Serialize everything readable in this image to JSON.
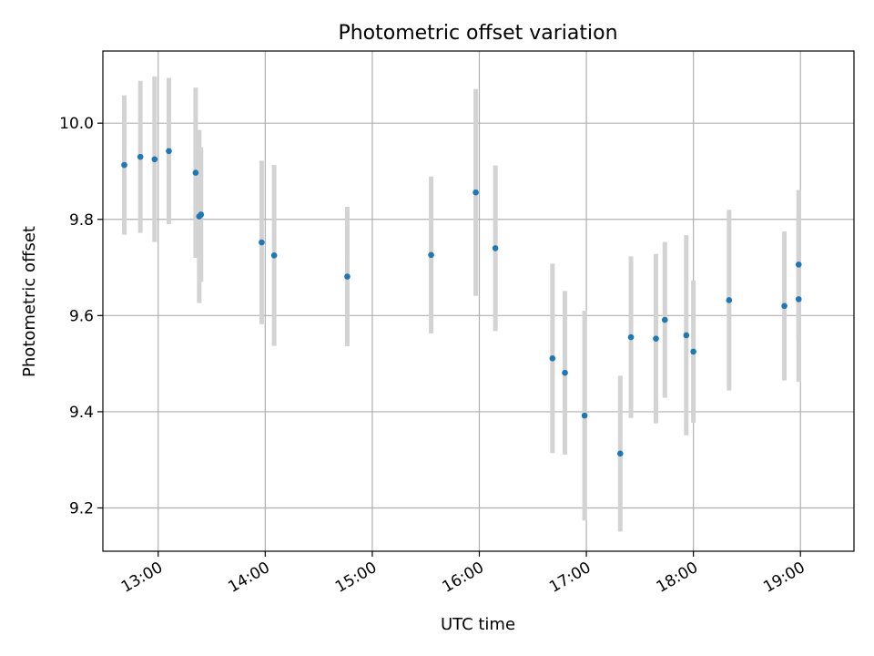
{
  "chart_data": {
    "type": "scatter",
    "title": "Photometric offset variation",
    "xlabel": "UTC time",
    "ylabel": "Photometric offset",
    "x_ticks": [
      "13:00",
      "14:00",
      "15:00",
      "16:00",
      "17:00",
      "18:00",
      "19:00"
    ],
    "y_ticks": [
      "9.2",
      "9.4",
      "9.6",
      "9.8",
      "10.0"
    ],
    "xlim": [
      "12:29",
      "19:30"
    ],
    "ylim": [
      9.11,
      10.15
    ],
    "grid": true,
    "marker_color": "#1f77b4",
    "errorbar_color": "#d3d3d3",
    "points": [
      {
        "t": "12:41",
        "y": 9.913,
        "err": 0.145
      },
      {
        "t": "12:50",
        "y": 9.93,
        "err": 0.158
      },
      {
        "t": "12:58",
        "y": 9.925,
        "err": 0.172
      },
      {
        "t": "13:06",
        "y": 9.942,
        "err": 0.152
      },
      {
        "t": "13:21",
        "y": 9.897,
        "err": 0.177
      },
      {
        "t": "13:23",
        "y": 9.806,
        "err": 0.18
      },
      {
        "t": "13:24",
        "y": 9.81,
        "err": 0.14
      },
      {
        "t": "13:58",
        "y": 9.752,
        "err": 0.17
      },
      {
        "t": "14:05",
        "y": 9.725,
        "err": 0.188
      },
      {
        "t": "14:46",
        "y": 9.681,
        "err": 0.145
      },
      {
        "t": "15:33",
        "y": 9.726,
        "err": 0.163
      },
      {
        "t": "15:58",
        "y": 9.856,
        "err": 0.215
      },
      {
        "t": "16:09",
        "y": 9.74,
        "err": 0.172
      },
      {
        "t": "16:41",
        "y": 9.511,
        "err": 0.197
      },
      {
        "t": "16:48",
        "y": 9.481,
        "err": 0.17
      },
      {
        "t": "16:59",
        "y": 9.392,
        "err": 0.218
      },
      {
        "t": "17:19",
        "y": 9.313,
        "err": 0.162
      },
      {
        "t": "17:25",
        "y": 9.555,
        "err": 0.168
      },
      {
        "t": "17:39",
        "y": 9.552,
        "err": 0.176
      },
      {
        "t": "17:44",
        "y": 9.591,
        "err": 0.162
      },
      {
        "t": "17:56",
        "y": 9.559,
        "err": 0.208
      },
      {
        "t": "18:00",
        "y": 9.525,
        "err": 0.148
      },
      {
        "t": "18:20",
        "y": 9.632,
        "err": 0.188
      },
      {
        "t": "18:51",
        "y": 9.62,
        "err": 0.155
      },
      {
        "t": "18:59",
        "y": 9.706,
        "err": 0.155
      },
      {
        "t": "18:59",
        "y": 9.634,
        "err": 0.172
      }
    ]
  }
}
